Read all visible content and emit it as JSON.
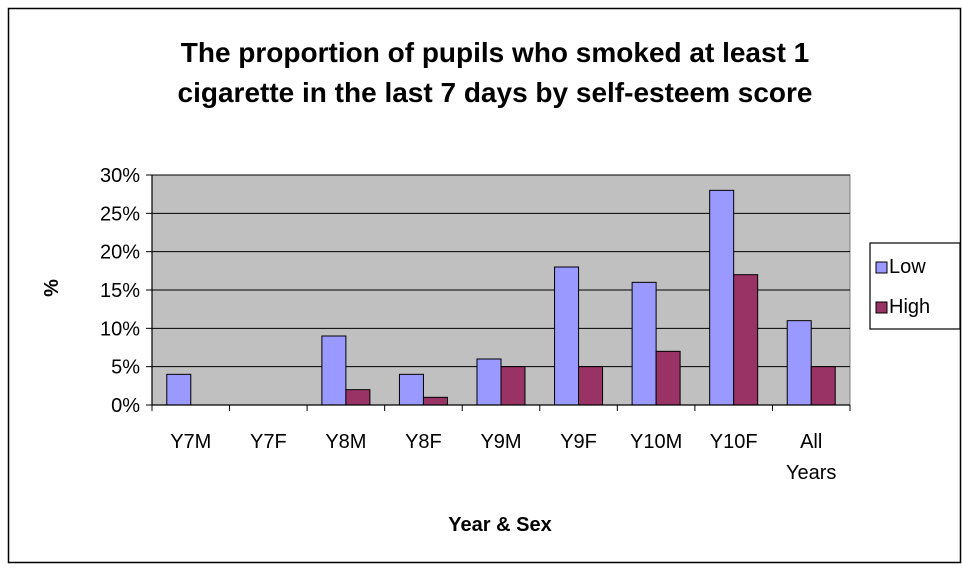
{
  "chart_data": {
    "type": "bar",
    "title": "The proportion of pupils who smoked at least 1 cigarette in the last 7 days by self-esteem score",
    "title_lines": [
      "The proportion of pupils who smoked at least 1",
      "cigarette in the last 7 days by self-esteem score"
    ],
    "xlabel": "Year & Sex",
    "ylabel": "%",
    "categories": [
      "Y7M",
      "Y7F",
      "Y8M",
      "Y8F",
      "Y9M",
      "Y9F",
      "Y10M",
      "Y10F",
      "All Years"
    ],
    "category_label_lines": [
      [
        "Y7M"
      ],
      [
        "Y7F"
      ],
      [
        "Y8M"
      ],
      [
        "Y8F"
      ],
      [
        "Y9M"
      ],
      [
        "Y9F"
      ],
      [
        "Y10M"
      ],
      [
        "Y10F"
      ],
      [
        "All",
        "Years"
      ]
    ],
    "series": [
      {
        "name": "Low",
        "color": "#9999ff",
        "values": [
          0.04,
          0,
          0.09,
          0.04,
          0.06,
          0.18,
          0.16,
          0.28,
          0.11
        ]
      },
      {
        "name": "High",
        "color": "#993366",
        "values": [
          0,
          0,
          0.02,
          0.01,
          0.05,
          0.05,
          0.07,
          0.17,
          0.05
        ]
      }
    ],
    "ylim": [
      0,
      0.3
    ],
    "yticks": [
      0,
      0.05,
      0.1,
      0.15,
      0.2,
      0.25,
      0.3
    ],
    "ytick_labels": [
      "0%",
      "5%",
      "10%",
      "15%",
      "20%",
      "25%",
      "30%"
    ],
    "grid": true,
    "plot_background": "#c0c0c0",
    "legend_position": "right"
  }
}
